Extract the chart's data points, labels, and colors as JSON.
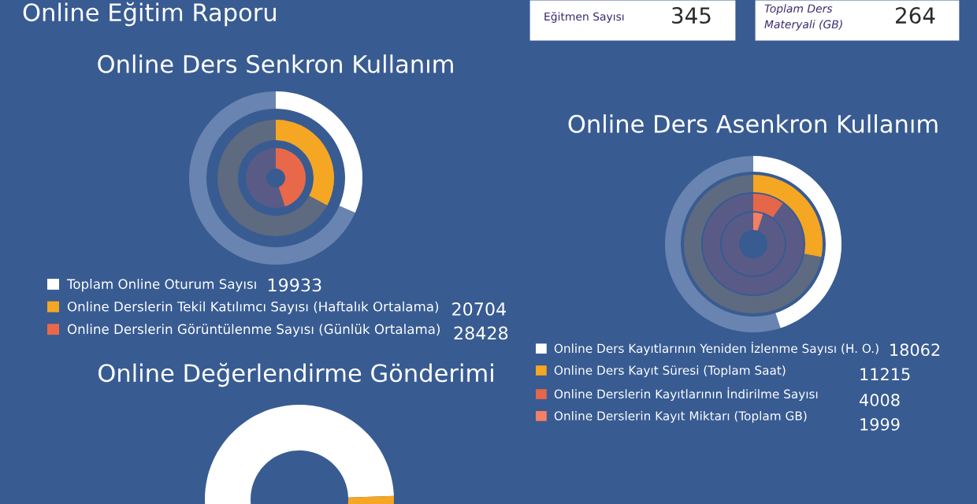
{
  "chart_data": [
    {
      "type": "other",
      "title": "Online Eğitim Raporu",
      "categories": [
        "Eğitmen Sayısı",
        "Toplam Ders Materyali (GB)"
      ],
      "values": [
        345,
        264
      ],
      "data_labels": true
    },
    {
      "type": "other",
      "title": "Online Ders Senkron Kullanım",
      "categories": [
        "Toplam Online Oturum Sayısı",
        "Online Derslerin Tekil Katılımcı Sayısı (Haftalık Ortalama)",
        "Online Derslerin Görüntülenme Sayısı (Günlük Ortalama)"
      ],
      "values": [
        19933,
        20704,
        28428
      ],
      "colors": [
        "#ffffff",
        "#f5a623",
        "#e8694a"
      ],
      "data_labels": true
    },
    {
      "type": "other",
      "title": "Online Ders Asenkron Kullanım",
      "categories": [
        "Online Ders Kayıtlarının Yeniden İzlenme Sayısı (H. O.)",
        "Online Ders Kayıt Süresi (Toplam Saat)",
        "Online Derslerin Kayıtlarının İndirilme Sayısı",
        "Online Derslerin Kayıt Miktarı (Toplam GB)"
      ],
      "values": [
        18062,
        11215,
        4008,
        1999
      ],
      "colors": [
        "#ffffff",
        "#f5a623",
        "#e5674a",
        "#f47f63"
      ],
      "data_labels": true
    },
    {
      "type": "donut",
      "title": "Online Değerlendirme Gönderimi",
      "categories": [
        null,
        null
      ],
      "values": [
        92,
        8
      ],
      "colors": [
        "#ffffff",
        "#f5a623"
      ]
    }
  ]
}
